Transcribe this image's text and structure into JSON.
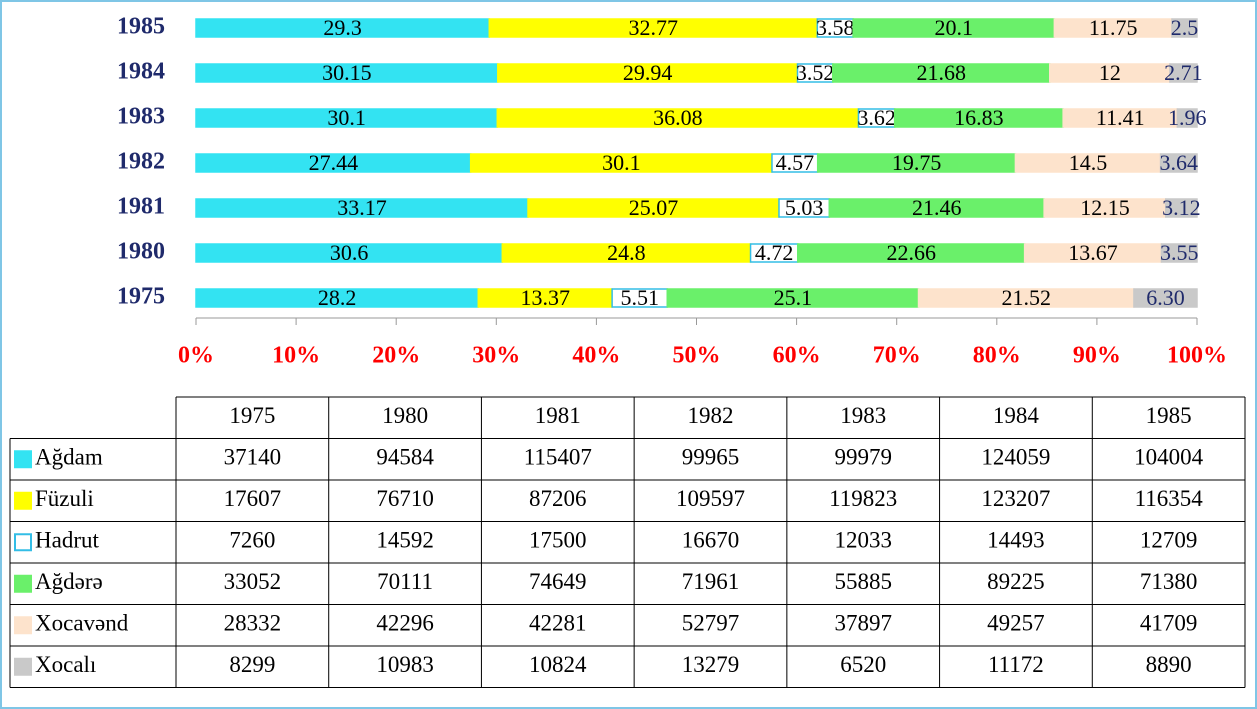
{
  "chart_data": {
    "type": "stacked_bar_100",
    "categories": [
      "1975",
      "1980",
      "1981",
      "1982",
      "1983",
      "1984",
      "1985"
    ],
    "xlim": [
      0,
      100
    ],
    "xticks": [
      {
        "value": 0,
        "label": "0%"
      },
      {
        "value": 10,
        "label": "10%"
      },
      {
        "value": 20,
        "label": "20%"
      },
      {
        "value": 30,
        "label": "30%"
      },
      {
        "value": 40,
        "label": "40%"
      },
      {
        "value": 50,
        "label": "50%"
      },
      {
        "value": 60,
        "label": "60%"
      },
      {
        "value": 70,
        "label": "70%"
      },
      {
        "value": 80,
        "label": "80%"
      },
      {
        "value": 90,
        "label": "90%"
      },
      {
        "value": 100,
        "label": "100%"
      }
    ],
    "series": [
      {
        "name": "Ağdam",
        "color": "#33e3f2",
        "border": "#33e3f2",
        "values": [
          28.2,
          30.6,
          33.17,
          27.44,
          30.1,
          30.15,
          29.3
        ],
        "counts": [
          37140,
          94584,
          115407,
          99965,
          99979,
          124059,
          104004
        ]
      },
      {
        "name": "Füzuli",
        "color": "#ffff00",
        "border": "#ffff00",
        "values": [
          13.37,
          24.8,
          25.07,
          30.1,
          36.08,
          29.94,
          32.77
        ],
        "counts": [
          17607,
          76710,
          87206,
          109597,
          119823,
          123207,
          116354
        ]
      },
      {
        "name": "Hadrut",
        "color": "#ffffff",
        "border": "#33bde6",
        "values": [
          5.51,
          4.72,
          5.03,
          4.57,
          3.62,
          3.52,
          3.58
        ],
        "counts": [
          7260,
          14592,
          17500,
          16670,
          12033,
          14493,
          12709
        ]
      },
      {
        "name": "Ağdərə",
        "color": "#6af06a",
        "border": "#6af06a",
        "values": [
          25.1,
          22.66,
          21.46,
          19.75,
          16.83,
          21.68,
          20.1
        ],
        "counts": [
          33052,
          70111,
          74649,
          71961,
          55885,
          89225,
          71380
        ]
      },
      {
        "name": "Xocavənd",
        "color": "#fde3cc",
        "border": "#fde3cc",
        "values": [
          21.52,
          13.67,
          12.15,
          14.5,
          11.41,
          12,
          11.75
        ],
        "counts": [
          28332,
          42296,
          42281,
          52797,
          37897,
          49257,
          41709
        ]
      },
      {
        "name": "Xocalı",
        "color": "#c9c9c9",
        "border": "#c9c9c9",
        "values": [
          6.3,
          3.55,
          3.12,
          3.64,
          1.96,
          2.71,
          2.5
        ],
        "value_labels": [
          "6.30",
          "3.55",
          "3.12",
          "3.64",
          "1.96",
          "2.71",
          "2.5"
        ],
        "counts": [
          8299,
          10983,
          10824,
          13279,
          6520,
          11172,
          8890
        ]
      }
    ]
  }
}
